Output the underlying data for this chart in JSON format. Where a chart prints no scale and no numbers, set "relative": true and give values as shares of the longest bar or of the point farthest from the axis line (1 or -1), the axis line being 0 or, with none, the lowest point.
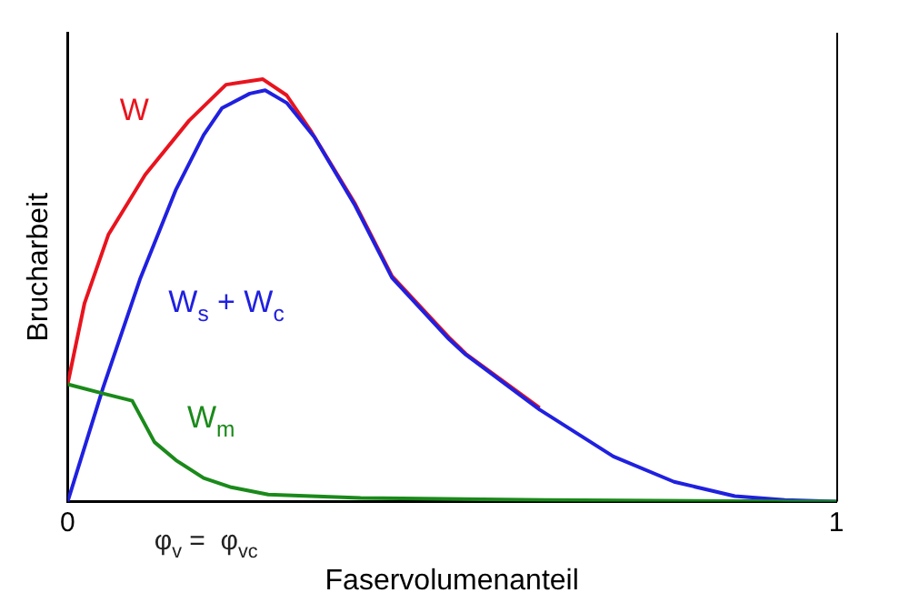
{
  "chart_data": {
    "type": "line",
    "relative": true,
    "xlabel": "Faservolumenanteil",
    "ylabel": "Brucharbeit",
    "xlim": [
      0,
      1
    ],
    "xticks": [
      0,
      1
    ],
    "grid": false,
    "legend": false,
    "marker": "none",
    "line_style": "solid",
    "annotations": [
      "φ$_{v}$ =  φ$_{vc}$"
    ],
    "series": [
      {
        "name": "W",
        "color": "#e8141e",
        "x": [
          0,
          0.022,
          0.053,
          0.101,
          0.158,
          0.206,
          0.254,
          0.285,
          0.317,
          0.374,
          0.422,
          0.496,
          0.518,
          0.614
        ],
        "values": [
          0.278,
          0.47,
          0.632,
          0.774,
          0.902,
          0.987,
          1,
          0.962,
          0.876,
          0.705,
          0.534,
          0.389,
          0.35,
          0.222
        ]
      },
      {
        "name": "W$_{s}$ + W$_{c}$",
        "color": "#2020e0",
        "x": [
          0,
          0.046,
          0.094,
          0.141,
          0.177,
          0.201,
          0.237,
          0.257,
          0.285,
          0.321,
          0.374,
          0.422,
          0.496,
          0.518,
          0.614,
          0.71,
          0.789,
          0.868,
          0.933,
          1
        ],
        "values": [
          0,
          0.269,
          0.526,
          0.739,
          0.868,
          0.932,
          0.966,
          0.974,
          0.944,
          0.863,
          0.701,
          0.53,
          0.385,
          0.348,
          0.218,
          0.107,
          0.047,
          0.013,
          0.004,
          0
        ]
      },
      {
        "name": "W$_{m}$",
        "color": "#1a8a1a",
        "x": [
          0,
          0.046,
          0.084,
          0.113,
          0.141,
          0.177,
          0.213,
          0.261,
          0.381,
          0.62,
          1
        ],
        "values": [
          0.278,
          0.256,
          0.239,
          0.141,
          0.098,
          0.056,
          0.034,
          0.017,
          0.009,
          0.004,
          0
        ]
      }
    ]
  }
}
